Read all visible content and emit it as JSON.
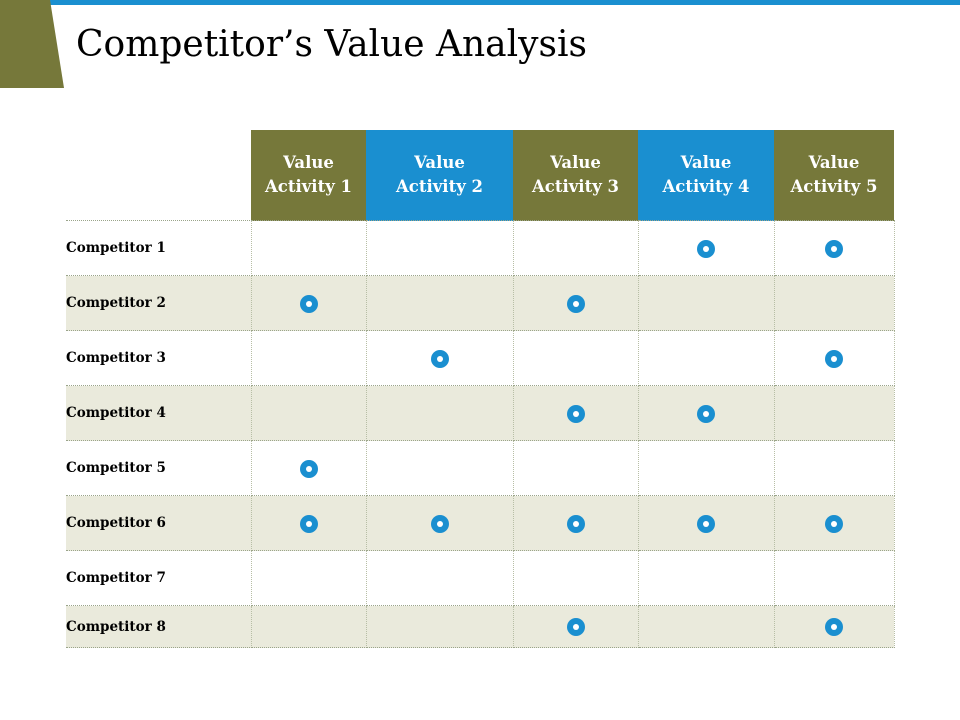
{
  "slide": {
    "title": "Competitor’s Value Analysis"
  },
  "colors": {
    "olive": "#76783a",
    "blue": "#1a8fd0",
    "row_shade": "#eaeadc",
    "marker": "#1a8fd0"
  },
  "table": {
    "columns": [
      {
        "line1": "Value",
        "line2": "Activity 1",
        "color": "#76783a"
      },
      {
        "line1": "Value",
        "line2": "Activity 2",
        "color": "#1a8fd0"
      },
      {
        "line1": "Value",
        "line2": "Activity 3",
        "color": "#76783a"
      },
      {
        "line1": "Value",
        "line2": "Activity 4",
        "color": "#1a8fd0"
      },
      {
        "line1": "Value",
        "line2": "Activity 5",
        "color": "#76783a"
      }
    ],
    "rows": [
      {
        "label": "Competitor 1",
        "marks": [
          false,
          false,
          false,
          true,
          true
        ]
      },
      {
        "label": "Competitor 2",
        "marks": [
          true,
          false,
          true,
          false,
          false
        ]
      },
      {
        "label": "Competitor 3",
        "marks": [
          false,
          true,
          false,
          false,
          true
        ]
      },
      {
        "label": "Competitor 4",
        "marks": [
          false,
          false,
          true,
          true,
          false
        ]
      },
      {
        "label": "Competitor 5",
        "marks": [
          true,
          false,
          false,
          false,
          false
        ]
      },
      {
        "label": "Competitor 6",
        "marks": [
          true,
          true,
          true,
          true,
          true
        ]
      },
      {
        "label": "Competitor 7",
        "marks": [
          false,
          false,
          false,
          false,
          false
        ]
      },
      {
        "label": "Competitor 8",
        "marks": [
          false,
          false,
          true,
          false,
          true
        ]
      }
    ],
    "marker_icon": "circle-dot-icon"
  }
}
